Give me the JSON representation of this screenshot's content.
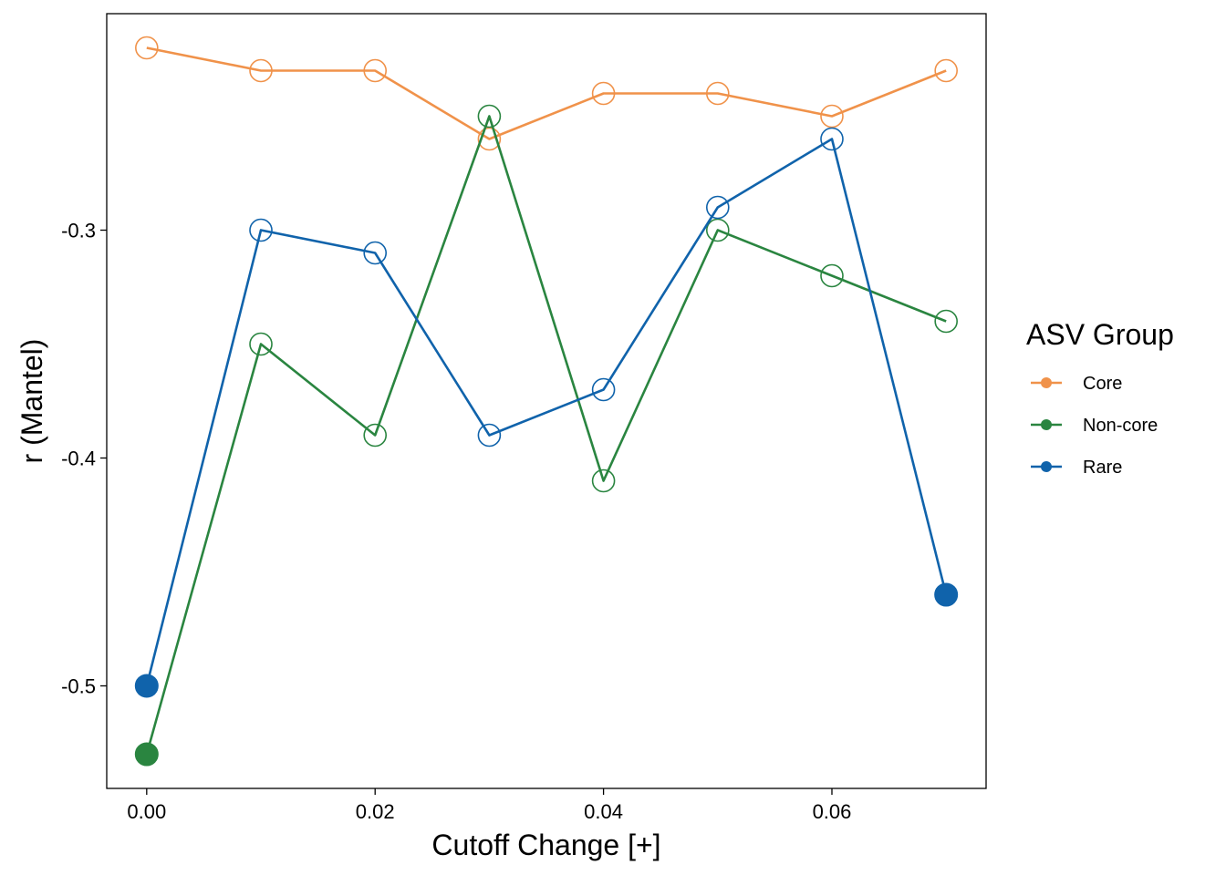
{
  "chart_data": {
    "type": "line",
    "title": "",
    "xlabel": "Cutoff Change [+]",
    "ylabel": "r (Mantel)",
    "x": [
      0.0,
      0.01,
      0.02,
      0.03,
      0.04,
      0.05,
      0.06,
      0.07
    ],
    "xlim": [
      -0.0035,
      0.0735
    ],
    "ylim": [
      -0.545,
      -0.205
    ],
    "x_ticks": [
      0.0,
      0.02,
      0.04,
      0.06
    ],
    "x_tick_labels": [
      "0.00",
      "0.02",
      "0.04",
      "0.06"
    ],
    "y_ticks": [
      -0.3,
      -0.4,
      -0.5
    ],
    "y_tick_labels": [
      "-0.3",
      "-0.4",
      "-0.5"
    ],
    "grid": false,
    "legend_position": "right",
    "legend_title": "ASV Group",
    "series": [
      {
        "name": "Core",
        "color": "#F0924A",
        "values": [
          -0.22,
          -0.23,
          -0.23,
          -0.26,
          -0.24,
          -0.24,
          -0.25,
          -0.23
        ],
        "filled": [
          false,
          false,
          false,
          false,
          false,
          false,
          false,
          false
        ]
      },
      {
        "name": "Non-core",
        "color": "#2A8540",
        "values": [
          -0.53,
          -0.35,
          -0.39,
          -0.25,
          -0.41,
          -0.3,
          -0.32,
          -0.34
        ],
        "filled": [
          true,
          false,
          false,
          false,
          false,
          false,
          false,
          false
        ]
      },
      {
        "name": "Rare",
        "color": "#1063AB",
        "values": [
          -0.5,
          -0.3,
          -0.31,
          -0.39,
          -0.37,
          -0.29,
          -0.26,
          -0.46
        ],
        "filled": [
          true,
          false,
          false,
          false,
          false,
          false,
          false,
          true
        ]
      }
    ]
  }
}
